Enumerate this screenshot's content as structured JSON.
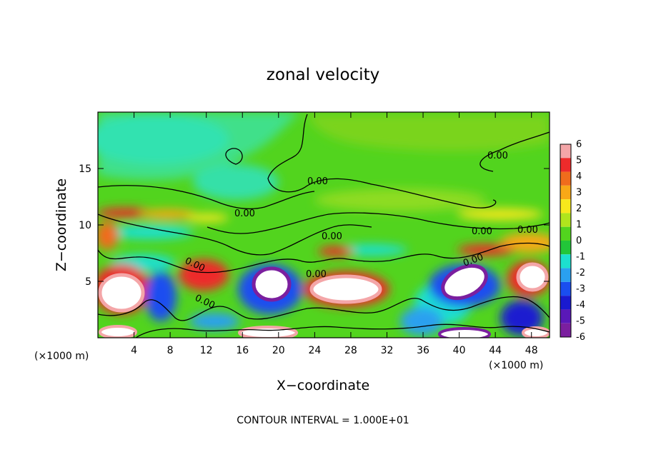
{
  "chart_data": {
    "type": "heatmap",
    "title": "zonal velocity",
    "xlabel": "X−coordinate",
    "ylabel": "Z−coordinate",
    "x_unit_left": "(×1000 m)",
    "x_unit_right": "(×1000 m)",
    "xlim": [
      0,
      50
    ],
    "ylim": [
      0,
      20
    ],
    "x_ticks": [
      4,
      8,
      12,
      16,
      20,
      24,
      28,
      32,
      36,
      40,
      44,
      48
    ],
    "y_ticks": [
      5,
      10,
      15
    ],
    "colorbar": {
      "min": -6,
      "max": 6,
      "ticks": [
        6,
        5,
        4,
        3,
        2,
        1,
        0,
        -1,
        -2,
        -3,
        -4,
        -5,
        -6
      ],
      "colors": [
        "#f4a6a8",
        "#ee2b2b",
        "#f06c1c",
        "#f8a817",
        "#f7e81c",
        "#b0e51d",
        "#52d41e",
        "#22c639",
        "#1ce0cf",
        "#2aa0f0",
        "#1a4ef0",
        "#1a1ad0",
        "#5a18b8",
        "#7b1f9f"
      ]
    },
    "contour_interval": "CONTOUR INTERVAL = 1.000E+01",
    "contour_labels": [
      "0.00",
      "0.00",
      "0.00",
      "0.00",
      "0.00",
      "0.00",
      "0.00",
      "0.00",
      "0.00",
      "0.00"
    ],
    "features": [
      {
        "x": 19,
        "z": 4.5,
        "u": -6
      },
      {
        "x": 41,
        "z": 4.8,
        "u": -6
      },
      {
        "x": 6,
        "z": 4.2,
        "u": 6
      },
      {
        "x": 29,
        "z": 4.2,
        "u": 6
      },
      {
        "x": 47,
        "z": 4.8,
        "u": 6
      },
      {
        "x": 12,
        "z": 5.4,
        "u": 5
      },
      {
        "x": 3,
        "z": 11,
        "u": 4
      },
      {
        "x": 8,
        "z": 10.5,
        "u": 3
      },
      {
        "x": 10,
        "z": 3,
        "u": -4
      },
      {
        "x": 2,
        "z": 0.8,
        "u": 6
      },
      {
        "x": 22,
        "z": 1.3,
        "u": 6
      },
      {
        "x": 36,
        "z": 1.6,
        "u": -3
      },
      {
        "x": 46,
        "z": 1.5,
        "u": -5
      },
      {
        "x": 48,
        "z": 0.6,
        "u": 6
      },
      {
        "x": 6,
        "z": 17.5,
        "u": -2
      },
      {
        "x": 16,
        "z": 14,
        "u": -1
      },
      {
        "x": 45,
        "z": 9,
        "u": 3
      }
    ]
  }
}
